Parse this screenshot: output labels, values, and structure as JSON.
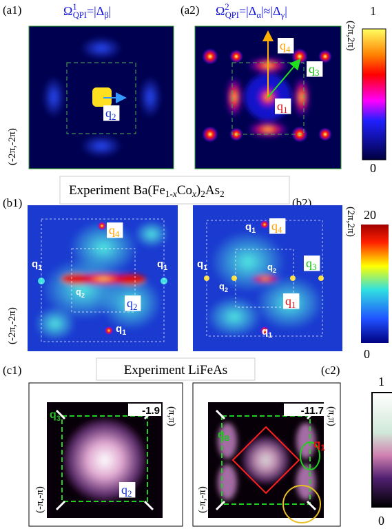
{
  "a1": {
    "label": "(a1)",
    "title": [
      "Ω",
      "1",
      "QPI",
      "=|Δ",
      "β",
      "|"
    ],
    "corner_low": "(-2π,-2π)",
    "q_labels": [
      [
        "q",
        "2"
      ]
    ]
  },
  "a2": {
    "label": "(a2)",
    "title": [
      "Ω",
      "2",
      "QPI",
      "=|Δ",
      "α",
      "|≈|Δ",
      "γ",
      "|"
    ],
    "corner_high": "(2π,2π)",
    "q_labels": [
      [
        "q",
        "4"
      ],
      [
        "q",
        "3"
      ],
      [
        "q",
        "1"
      ]
    ]
  },
  "colorbar_a": {
    "max": "1",
    "min": "0"
  },
  "b_header": [
    "Experiment Ba(Fe",
    "1-",
    "x",
    "Co",
    "x",
    ")",
    "2",
    "As",
    "2"
  ],
  "b1": {
    "label": "(b1)",
    "corner_low": "(-2π,-2π)",
    "q_labels": [
      [
        "q",
        "4"
      ],
      [
        "q",
        "1"
      ],
      [
        "q",
        "1"
      ],
      [
        "q",
        "2"
      ],
      [
        "q",
        "2"
      ],
      [
        "q",
        "1"
      ]
    ]
  },
  "b2": {
    "label": "(b2)",
    "corner_high": "(2π,2π)",
    "q_labels": [
      [
        "q",
        "1"
      ],
      [
        "q",
        "4"
      ],
      [
        "q",
        "1"
      ],
      [
        "q",
        "2"
      ],
      [
        "q",
        "3"
      ],
      [
        "q",
        "2"
      ],
      [
        "q",
        "1"
      ],
      [
        "q",
        "1"
      ]
    ]
  },
  "colorbar_b": {
    "max": "20",
    "min": "0"
  },
  "c_header": "Experiment LiFeAs",
  "c1": {
    "label": "(c1)",
    "energy": "-1.9",
    "corner_high": "(π,π)",
    "corner_low": "(-π,-π)",
    "q_labels": [
      [
        "q",
        "3"
      ],
      [
        "q",
        "2"
      ]
    ]
  },
  "c2": {
    "label": "(c2)",
    "energy": "-11.7",
    "corner_high": "(π,π)",
    "corner_low": "(-π,-π)",
    "q_labels": [
      [
        "q",
        "B"
      ],
      [
        "q",
        "1"
      ]
    ]
  },
  "colorbar_c": {
    "max": "1",
    "min": "0"
  }
}
